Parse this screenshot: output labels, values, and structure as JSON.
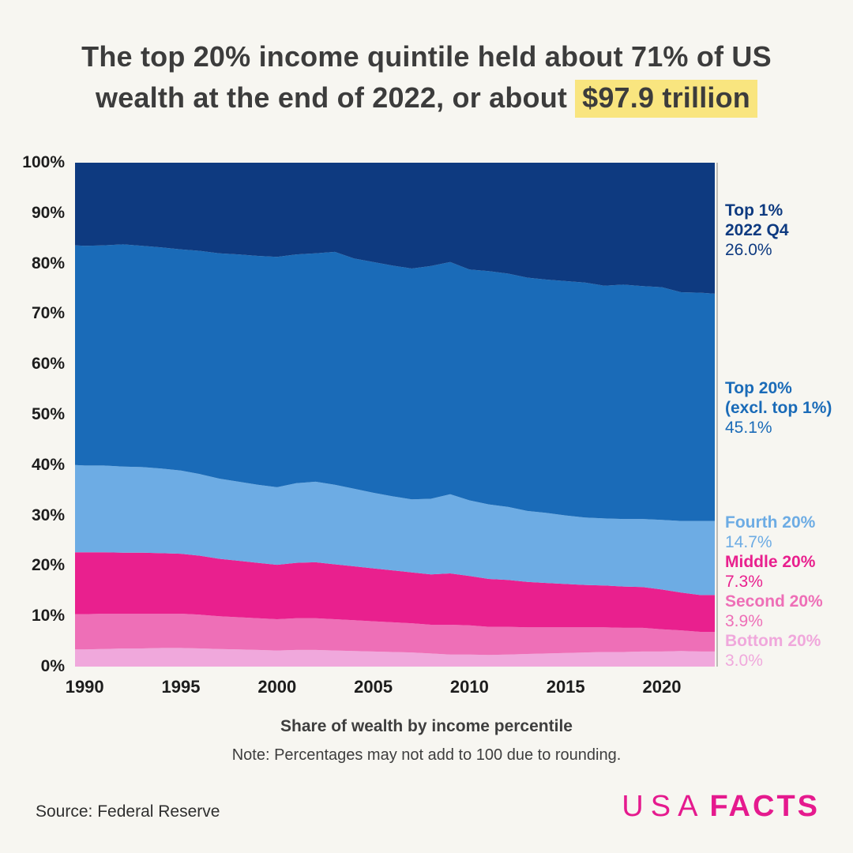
{
  "header": {
    "title_line1": "The top 20% income quintile held about 71% of US",
    "title_line2_pre": "wealth at the end of 2022, or about",
    "title_highlight": "$97.9 trillion"
  },
  "legend": [
    {
      "label": "Top 1%",
      "sublabel": "2022 Q4",
      "value": "26.0%",
      "color": "#0e3a80"
    },
    {
      "label": "Top 20%",
      "sublabel": "(excl. top 1%)",
      "value": "45.1%",
      "color": "#1a6bb8"
    },
    {
      "label": "Fourth 20%",
      "value": "14.7%",
      "color": "#6dace4"
    },
    {
      "label": "Middle 20%",
      "value": "7.3%",
      "color": "#e9208e"
    },
    {
      "label": "Second 20%",
      "value": "3.9%",
      "color": "#ee6fb7"
    },
    {
      "label": "Bottom 20%",
      "value": "3.0%",
      "color": "#f0a8dc"
    }
  ],
  "footer": {
    "caption": "Share of wealth by income percentile",
    "note": "Note: Percentages may not add to 100 due to rounding.",
    "source": "Source: Federal Reserve"
  },
  "logo": {
    "usa": "USA",
    "facts": "FACTS"
  },
  "colors": {
    "background": "#f7f6f1",
    "title_text": "#3c3c3c",
    "highlight_bg": "#f9e57f",
    "axis_text": "#1d1d1d",
    "axis_line": "#bdbcb7",
    "logo_pink": "#e51a8e"
  },
  "chart_data": {
    "type": "area",
    "stacked": true,
    "title": "The top 20% income quintile held about 71% of US wealth at the end of 2022, or about $97.9 trillion",
    "xlabel": "Share of wealth by income percentile",
    "ylabel": "",
    "ylim": [
      0,
      100
    ],
    "grid": false,
    "legend_position": "right",
    "x_ticks": [
      1990,
      1995,
      2000,
      2005,
      2010,
      2015,
      2020
    ],
    "y_ticks": [
      0,
      10,
      20,
      30,
      40,
      50,
      60,
      70,
      80,
      90,
      100
    ],
    "x": [
      1989.5,
      1990,
      1991,
      1992,
      1993,
      1994,
      1995,
      1996,
      1997,
      1998,
      1999,
      2000,
      2001,
      2002,
      2003,
      2004,
      2005,
      2006,
      2007,
      2008,
      2009,
      2010,
      2011,
      2012,
      2013,
      2014,
      2015,
      2016,
      2017,
      2018,
      2019,
      2020,
      2021,
      2022,
      2022.75
    ],
    "series": [
      {
        "id": "bottom-20",
        "name": "Bottom 20%",
        "color": "#f0a8dc",
        "value_2022q4": 3.0,
        "values": [
          3.4,
          3.4,
          3.5,
          3.6,
          3.6,
          3.7,
          3.7,
          3.6,
          3.5,
          3.4,
          3.3,
          3.2,
          3.3,
          3.3,
          3.2,
          3.1,
          3.0,
          2.9,
          2.8,
          2.6,
          2.4,
          2.4,
          2.3,
          2.4,
          2.5,
          2.6,
          2.7,
          2.8,
          2.9,
          2.9,
          3.0,
          3.0,
          3.1,
          3.0,
          3.0
        ]
      },
      {
        "id": "second-20",
        "name": "Second 20%",
        "color": "#ee6fb7",
        "value_2022q4": 3.9,
        "values": [
          7.0,
          7.0,
          7.0,
          6.9,
          6.9,
          6.8,
          6.8,
          6.7,
          6.5,
          6.4,
          6.3,
          6.2,
          6.3,
          6.3,
          6.2,
          6.1,
          6.0,
          5.9,
          5.8,
          5.7,
          5.9,
          5.8,
          5.6,
          5.5,
          5.3,
          5.2,
          5.1,
          5.0,
          4.9,
          4.8,
          4.7,
          4.4,
          4.1,
          3.9,
          3.9
        ]
      },
      {
        "id": "middle-20",
        "name": "Middle 20%",
        "color": "#e9208e",
        "value_2022q4": 7.3,
        "values": [
          12.3,
          12.3,
          12.2,
          12.1,
          12.1,
          12.0,
          11.9,
          11.7,
          11.4,
          11.2,
          11.0,
          10.8,
          11.0,
          11.1,
          10.9,
          10.7,
          10.5,
          10.3,
          10.1,
          10.0,
          10.2,
          9.8,
          9.5,
          9.3,
          9.0,
          8.8,
          8.6,
          8.4,
          8.3,
          8.2,
          8.1,
          7.9,
          7.5,
          7.3,
          7.3
        ]
      },
      {
        "id": "fourth-20",
        "name": "Fourth 20%",
        "color": "#6dace4",
        "value_2022q4": 14.7,
        "values": [
          17.3,
          17.2,
          17.2,
          17.1,
          17.0,
          16.8,
          16.5,
          16.2,
          15.9,
          15.7,
          15.5,
          15.4,
          15.8,
          16.0,
          15.8,
          15.4,
          15.0,
          14.7,
          14.5,
          15.0,
          15.7,
          15.0,
          14.8,
          14.5,
          14.1,
          13.9,
          13.6,
          13.4,
          13.3,
          13.4,
          13.5,
          13.8,
          14.2,
          14.7,
          14.7
        ]
      },
      {
        "id": "top-20-excl-top-1",
        "name": "Top 20% (excl. top 1%)",
        "color": "#1a6bb8",
        "value_2022q4": 45.1,
        "values": [
          43.6,
          43.6,
          43.7,
          44.1,
          43.9,
          43.9,
          43.9,
          44.3,
          44.7,
          45.1,
          45.4,
          45.7,
          45.4,
          45.3,
          46.2,
          45.7,
          45.8,
          45.8,
          45.8,
          46.2,
          46.1,
          45.8,
          46.3,
          46.3,
          46.3,
          46.3,
          46.5,
          46.6,
          46.2,
          46.5,
          46.2,
          46.2,
          45.4,
          45.3,
          45.1
        ]
      },
      {
        "id": "top-1",
        "name": "Top 1%",
        "color": "#0e3a80",
        "value_2022q4": 26.0,
        "values": [
          16.4,
          16.5,
          16.4,
          16.2,
          16.5,
          16.8,
          17.2,
          17.5,
          18.0,
          18.2,
          18.5,
          18.7,
          18.2,
          18.0,
          17.7,
          19.0,
          19.7,
          20.4,
          21.0,
          20.5,
          19.7,
          21.2,
          21.5,
          22.0,
          22.8,
          23.2,
          23.5,
          23.8,
          24.4,
          24.2,
          24.5,
          24.7,
          25.7,
          25.8,
          26.0
        ]
      }
    ]
  }
}
